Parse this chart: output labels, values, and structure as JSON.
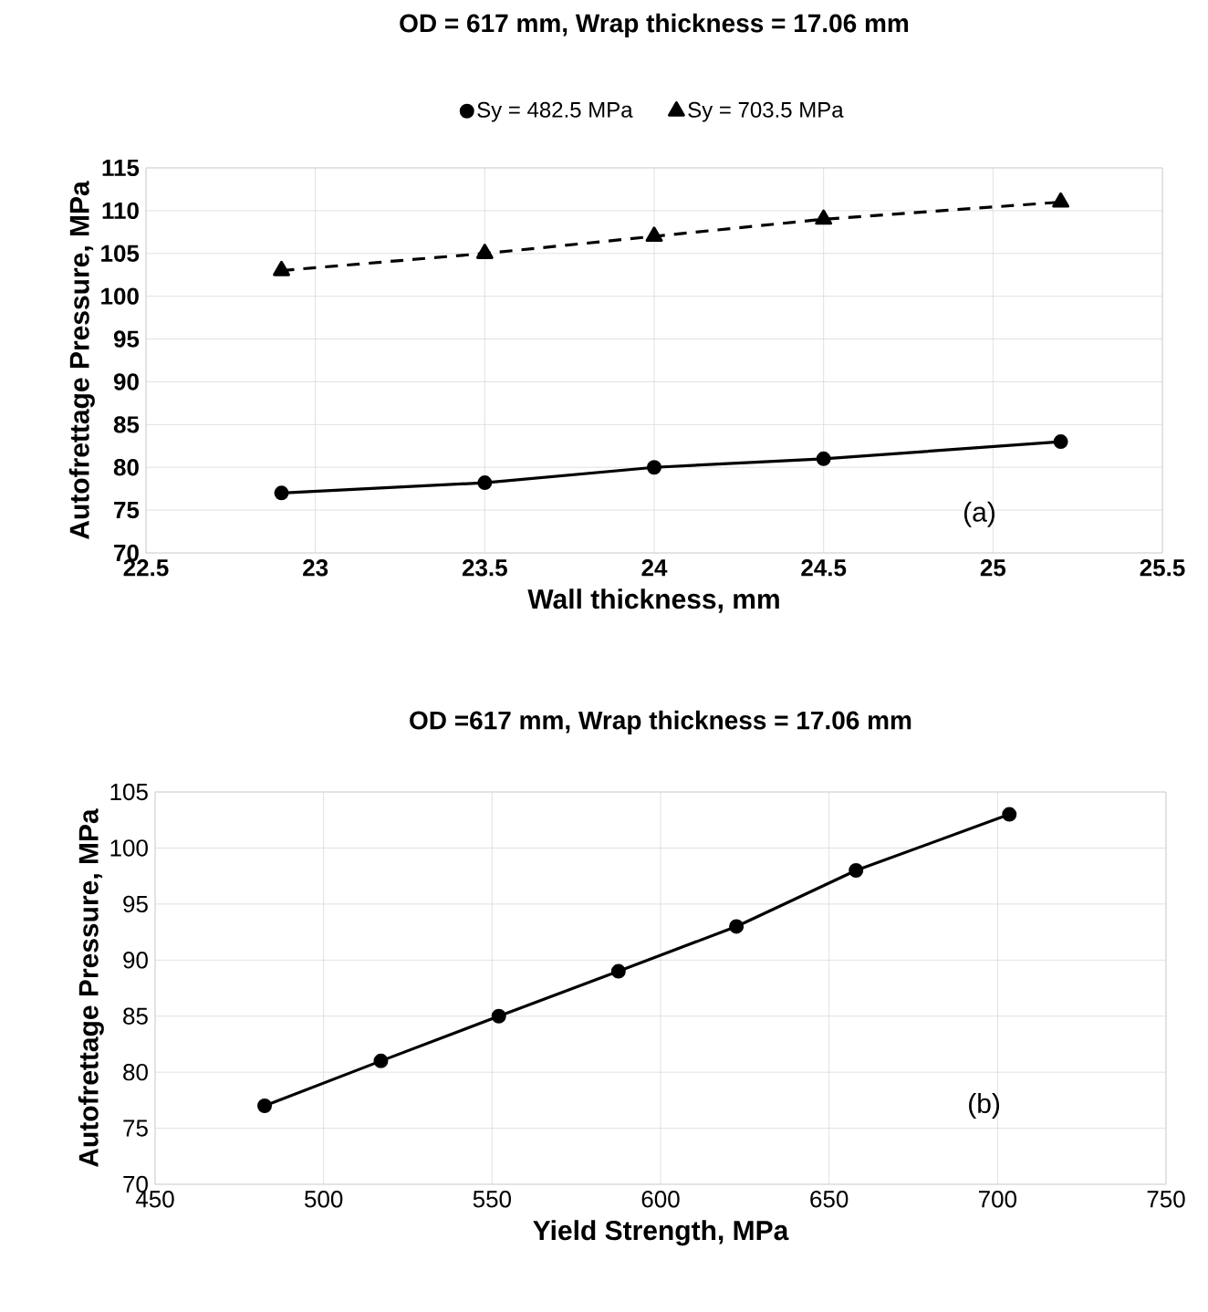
{
  "chart_data": [
    {
      "type": "line",
      "title": "OD = 617 mm, Wrap thickness = 17.06 mm",
      "xlabel": "Wall thickness, mm",
      "ylabel": "Autofrettage Pressure, MPa",
      "x": [
        22.9,
        23.5,
        24,
        24.5,
        25.2
      ],
      "series": [
        {
          "name": "Sy = 482.5 MPa",
          "color": "#000000",
          "marker": "circle",
          "line_style": "solid",
          "values": [
            77,
            78.2,
            80,
            81,
            83
          ]
        },
        {
          "name": "Sy = 703.5 MPa",
          "color": "#000000",
          "marker": "triangle",
          "line_style": "dashed",
          "values": [
            103,
            105,
            107,
            109,
            111
          ]
        }
      ],
      "xlim": [
        22.5,
        25.5
      ],
      "xticks": [
        22.5,
        23,
        23.5,
        24,
        24.5,
        25,
        25.5
      ],
      "ylim": [
        70,
        115
      ],
      "yticks": [
        70,
        75,
        80,
        85,
        90,
        95,
        100,
        105,
        110,
        115
      ],
      "grid": true,
      "legend": "top",
      "annotations": [
        "(a)"
      ]
    },
    {
      "type": "line",
      "title": "OD =617 mm, Wrap thickness = 17.06 mm",
      "xlabel": "Yield Strength, MPa",
      "ylabel": "Autofrettage Pressure, MPa",
      "x": [
        482.5,
        517,
        552,
        587.5,
        622.5,
        658,
        703.5
      ],
      "series": [
        {
          "color": "#000000",
          "marker": "circle",
          "line_style": "solid",
          "values": [
            77,
            81,
            85,
            89,
            93,
            98,
            103
          ]
        }
      ],
      "xlim": [
        450,
        750
      ],
      "xticks": [
        450,
        500,
        550,
        600,
        650,
        700,
        750
      ],
      "ylim": [
        70,
        105
      ],
      "yticks": [
        70,
        75,
        80,
        85,
        90,
        95,
        100,
        105
      ],
      "grid": true,
      "annotations": [
        "(b)"
      ]
    }
  ]
}
